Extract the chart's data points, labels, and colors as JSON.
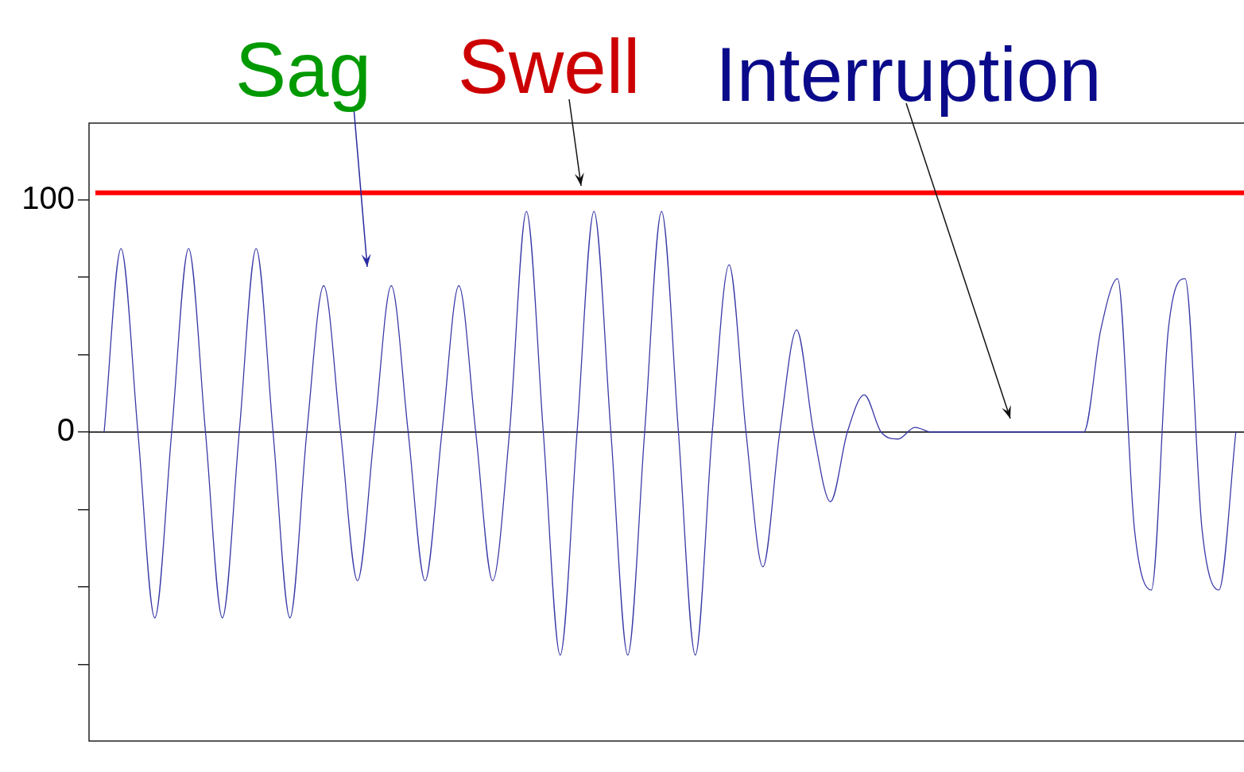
{
  "chart_data": {
    "type": "line",
    "annotations": [
      "Sag",
      "Swell",
      "Interruption"
    ],
    "categories": [
      null,
      null,
      null,
      null,
      null,
      null,
      null,
      null,
      null,
      null,
      null,
      null,
      null,
      null,
      null,
      null,
      null,
      null,
      null,
      null,
      null,
      null,
      null,
      null,
      null,
      null,
      null,
      null,
      null,
      null,
      null,
      null,
      null,
      null,
      null,
      null,
      null,
      null,
      null,
      null,
      null,
      null,
      null,
      null,
      null,
      null,
      null,
      null,
      null,
      null,
      null,
      null,
      null,
      null,
      null,
      null,
      null,
      null,
      null,
      null,
      null,
      null,
      null,
      null,
      null,
      null,
      null,
      null
    ],
    "series": [
      {
        "color": "#3a3aa8",
        "values": [
          0,
          79,
          0,
          -80,
          0,
          79,
          0,
          -80,
          0,
          79,
          0,
          -80,
          0,
          63,
          0,
          -64,
          0,
          63,
          0,
          -64,
          0,
          63,
          0,
          -64,
          0,
          95,
          0,
          -96,
          0,
          95,
          0,
          -96,
          0,
          95,
          0,
          -96,
          0,
          72,
          0,
          -58,
          0,
          44,
          0,
          -30,
          0,
          16,
          0,
          -3,
          2,
          0,
          0,
          0,
          0,
          0,
          0,
          0,
          0,
          0,
          0,
          44,
          66,
          -42,
          -68,
          44,
          66,
          -42,
          -68,
          0
        ]
      }
    ],
    "ylim": [
      -133,
      133
    ],
    "yticks": [
      {
        "value": -100,
        "label": null
      },
      {
        "value": -66.7,
        "label": null
      },
      {
        "value": -33.3,
        "label": null
      },
      0,
      {
        "value": 33.3,
        "label": null
      },
      {
        "value": 66.7,
        "label": null
      },
      100
    ],
    "tick_labels": "y",
    "grid": false,
    "legend": false,
    "marker": "none",
    "line_style": "solid",
    "ref_lines": [
      {
        "axis": "y",
        "value": 103,
        "color": "#ff0000"
      },
      {
        "axis": "y",
        "value": 0,
        "color": "#000000"
      }
    ]
  }
}
